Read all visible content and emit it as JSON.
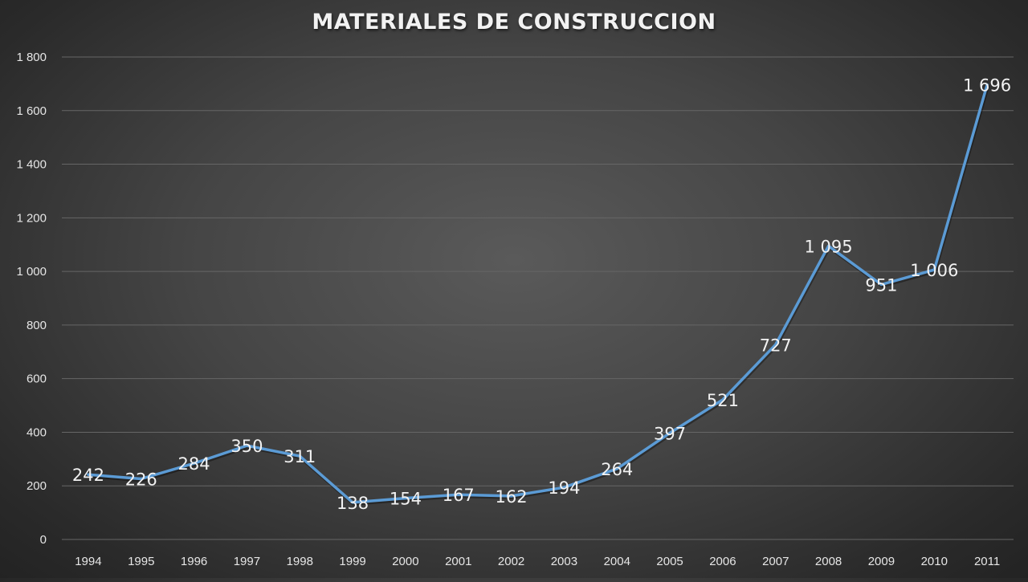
{
  "chart_data": {
    "type": "line",
    "title": "MATERIALES DE CONSTRUCCION",
    "categories": [
      "1994",
      "1995",
      "1996",
      "1997",
      "1998",
      "1999",
      "2000",
      "2001",
      "2002",
      "2003",
      "2004",
      "2005",
      "2006",
      "2007",
      "2008",
      "2009",
      "2010",
      "2011"
    ],
    "values": [
      242,
      226,
      284,
      350,
      311,
      138,
      154,
      167,
      162,
      194,
      264,
      397,
      521,
      727,
      1095,
      951,
      1006,
      1696
    ],
    "value_labels": [
      "242",
      "226",
      "284",
      "350",
      "311",
      "138",
      "154",
      "167",
      "162",
      "194",
      "264",
      "397",
      "521",
      "727",
      "1 095",
      "951",
      "1 006",
      "1 696"
    ],
    "ylim": [
      0,
      1800
    ],
    "y_ticks": [
      0,
      200,
      400,
      600,
      800,
      1000,
      1200,
      1400,
      1600,
      1800
    ],
    "y_tick_labels": [
      "0",
      "200",
      "400",
      "600",
      "800",
      "1 000",
      "1 200",
      "1 400",
      "1 600",
      "1 800"
    ],
    "grid": true,
    "legend": "none",
    "xlabel": "",
    "ylabel": "",
    "line_color": "#5b9bd5",
    "grid_color": "#666666"
  }
}
